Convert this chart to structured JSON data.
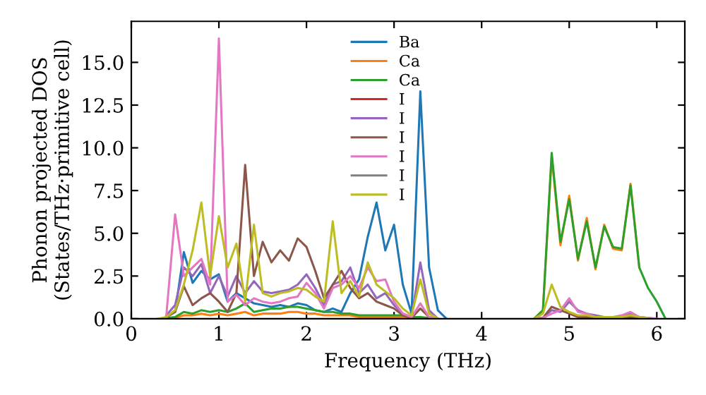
{
  "chart_data": {
    "type": "line",
    "xlabel": "Frequency (THz)",
    "ylabel": "Phonon projected DOS\n(States/THz·primitive cell)",
    "x": [
      0.3,
      0.4,
      0.5,
      0.6,
      0.7,
      0.8,
      0.9,
      1.0,
      1.1,
      1.2,
      1.3,
      1.4,
      1.5,
      1.6,
      1.7,
      1.8,
      1.9,
      2.0,
      2.1,
      2.2,
      2.3,
      2.4,
      2.5,
      2.6,
      2.7,
      2.8,
      2.9,
      3.0,
      3.1,
      3.2,
      3.3,
      3.4,
      3.5,
      3.6,
      3.7,
      3.8,
      3.9,
      4.0,
      4.1,
      4.2,
      4.3,
      4.4,
      4.5,
      4.6,
      4.7,
      4.8,
      4.9,
      5.0,
      5.1,
      5.2,
      5.3,
      5.4,
      5.5,
      5.6,
      5.7,
      5.8,
      5.9,
      6.0,
      6.1
    ],
    "series": [
      {
        "name": "Ba",
        "color": "#1f77b4",
        "values": [
          null,
          0.1,
          0.4,
          3.9,
          2.1,
          2.8,
          2.3,
          2.6,
          1.0,
          1.5,
          1.2,
          0.9,
          0.8,
          0.7,
          0.8,
          0.7,
          0.9,
          0.8,
          0.5,
          0.4,
          0.6,
          0.4,
          1.5,
          2.3,
          4.8,
          6.8,
          4.0,
          5.5,
          2.0,
          0.3,
          13.3,
          3.0,
          0.5,
          0,
          null,
          null,
          null,
          null,
          null,
          null,
          null,
          null,
          null,
          null,
          null,
          null,
          null,
          null,
          null,
          null,
          null,
          null,
          null,
          null,
          null,
          null,
          null,
          null,
          null
        ]
      },
      {
        "name": "Ca",
        "color": "#ff7f0e",
        "values": [
          null,
          0.05,
          0.05,
          0.2,
          0.2,
          0.3,
          0.2,
          0.3,
          0.2,
          0.3,
          0.4,
          0.2,
          0.3,
          0.3,
          0.3,
          0.4,
          0.4,
          0.3,
          0.3,
          0.2,
          0.2,
          0.2,
          0.2,
          0.1,
          0.1,
          0.1,
          0.1,
          0.1,
          0.1,
          0.1,
          0.05,
          0.05,
          0,
          null,
          null,
          null,
          null,
          null,
          null,
          null,
          null,
          null,
          null,
          0,
          0.5,
          9.5,
          4.3,
          7.2,
          3.4,
          5.9,
          2.9,
          5.5,
          4.1,
          4.0,
          7.9,
          3.0,
          null,
          null,
          null
        ]
      },
      {
        "name": "Ca",
        "color": "#2ca02c",
        "values": [
          null,
          0.05,
          0.1,
          0.4,
          0.3,
          0.5,
          0.4,
          0.5,
          0.4,
          0.6,
          0.9,
          0.4,
          0.5,
          0.6,
          0.6,
          0.7,
          0.7,
          0.6,
          0.5,
          0.4,
          0.4,
          0.3,
          0.3,
          0.2,
          0.2,
          0.2,
          0.2,
          0.2,
          0.2,
          0.1,
          0.1,
          0.05,
          0,
          null,
          null,
          null,
          null,
          null,
          null,
          null,
          null,
          null,
          null,
          0,
          0.5,
          9.7,
          4.5,
          7.0,
          3.5,
          5.7,
          3.0,
          5.4,
          4.2,
          4.1,
          7.8,
          3.0,
          1.8,
          1.0,
          0
        ]
      },
      {
        "name": "I",
        "color": "#d62728",
        "values": [
          null,
          null,
          null,
          null,
          null,
          null,
          null,
          null,
          null,
          null,
          null,
          null,
          null,
          null,
          null,
          null,
          null,
          null,
          null,
          null,
          null,
          null,
          null,
          null,
          null,
          null,
          null,
          null,
          null,
          null,
          null,
          null,
          null,
          null,
          null,
          null,
          null,
          null,
          null,
          null,
          null,
          null,
          null,
          null,
          null,
          null,
          null,
          null,
          null,
          null,
          null,
          null,
          null,
          null,
          null,
          null,
          null,
          null,
          null
        ]
      },
      {
        "name": "I",
        "color": "#9467bd",
        "values": [
          null,
          0.2,
          0.8,
          3.0,
          2.5,
          3.2,
          1.5,
          2.5,
          1.3,
          2.5,
          1.5,
          2.2,
          1.6,
          1.5,
          1.6,
          1.7,
          2.0,
          2.6,
          1.8,
          0.8,
          2.0,
          2.2,
          3.0,
          1.5,
          2.0,
          1.2,
          1.5,
          0.8,
          0.3,
          0.1,
          3.3,
          0.5,
          0,
          null,
          null,
          null,
          null,
          null,
          null,
          null,
          null,
          null,
          null,
          0,
          0.05,
          0.5,
          0.4,
          1.0,
          0.5,
          0.3,
          0.2,
          0.1,
          0.1,
          0.1,
          0.3,
          0.1,
          0.05,
          0,
          null
        ]
      },
      {
        "name": "I",
        "color": "#8c564b",
        "values": [
          null,
          0.1,
          0.4,
          1.9,
          0.8,
          1.2,
          1.5,
          1.0,
          0.4,
          1.5,
          9.0,
          2.5,
          4.5,
          3.3,
          4.0,
          3.4,
          4.7,
          4.2,
          2.8,
          1.2,
          2.0,
          2.8,
          1.8,
          1.2,
          1.5,
          1.0,
          0.8,
          0.6,
          0.2,
          0.05,
          0.6,
          0.1,
          0,
          null,
          null,
          null,
          null,
          null,
          null,
          null,
          null,
          null,
          null,
          0,
          0.05,
          0.7,
          0.5,
          0.3,
          0.1,
          0.1,
          0.05,
          0.05,
          0.05,
          0.05,
          0.1,
          0.05,
          0,
          null,
          null
        ]
      },
      {
        "name": "I",
        "color": "#e377c2",
        "values": [
          null,
          0.2,
          6.1,
          2.5,
          3.0,
          3.5,
          2.0,
          16.4,
          1.0,
          1.4,
          0.8,
          1.2,
          1.0,
          0.9,
          1.0,
          1.2,
          1.3,
          2.1,
          1.5,
          0.6,
          1.8,
          2.0,
          2.5,
          1.8,
          3.0,
          2.2,
          2.3,
          1.0,
          0.3,
          0.1,
          0.9,
          0.1,
          0,
          null,
          null,
          null,
          null,
          null,
          null,
          null,
          null,
          null,
          null,
          0,
          0.05,
          0.3,
          0.5,
          1.2,
          0.4,
          0.3,
          0.1,
          0.1,
          0.1,
          0.2,
          0.4,
          0.1,
          0.05,
          0,
          null
        ]
      },
      {
        "name": "I",
        "color": "#7f7f7f",
        "values": [
          null,
          null,
          null,
          null,
          null,
          null,
          null,
          null,
          null,
          null,
          null,
          null,
          null,
          null,
          null,
          null,
          null,
          null,
          null,
          null,
          null,
          null,
          null,
          null,
          null,
          null,
          null,
          null,
          null,
          null,
          null,
          null,
          null,
          null,
          null,
          null,
          null,
          null,
          null,
          null,
          null,
          null,
          null,
          null,
          null,
          null,
          null,
          null,
          null,
          null,
          null,
          null,
          null,
          null,
          null,
          null,
          null,
          null,
          null
        ]
      },
      {
        "name": "I",
        "color": "#bcbd22",
        "values": [
          0,
          0.1,
          0.5,
          2.0,
          4.0,
          6.8,
          2.5,
          6.0,
          3.0,
          4.4,
          1.0,
          5.5,
          1.5,
          1.3,
          1.5,
          1.6,
          1.8,
          1.7,
          1.3,
          1.0,
          5.7,
          1.5,
          2.2,
          1.3,
          3.3,
          2.0,
          1.6,
          1.2,
          0.6,
          0.2,
          2.3,
          0.3,
          0,
          null,
          null,
          null,
          null,
          null,
          null,
          null,
          null,
          null,
          null,
          0,
          0.3,
          2.0,
          0.7,
          0.4,
          0.2,
          0.2,
          0.1,
          0.1,
          0.1,
          0.1,
          0.2,
          0.1,
          0.05,
          null,
          null
        ]
      }
    ],
    "xlim": [
      0,
      6.32
    ],
    "ylim": [
      0,
      17.4
    ],
    "xticks": [
      0,
      1,
      2,
      3,
      4,
      5,
      6
    ],
    "yticks": [
      {
        "value": 0,
        "label": "0.0"
      },
      {
        "value": 2.5,
        "label": "2.5"
      },
      {
        "value": 5,
        "label": "5.0"
      },
      {
        "value": 7.5,
        "label": "7.5"
      },
      {
        "value": 10,
        "label": "10.0"
      },
      {
        "value": 12.5,
        "label": "12.5"
      },
      {
        "value": 15,
        "label": "15.0"
      }
    ],
    "legend": "top center",
    "grid": false,
    "marker": "none",
    "line_style": "solid"
  }
}
